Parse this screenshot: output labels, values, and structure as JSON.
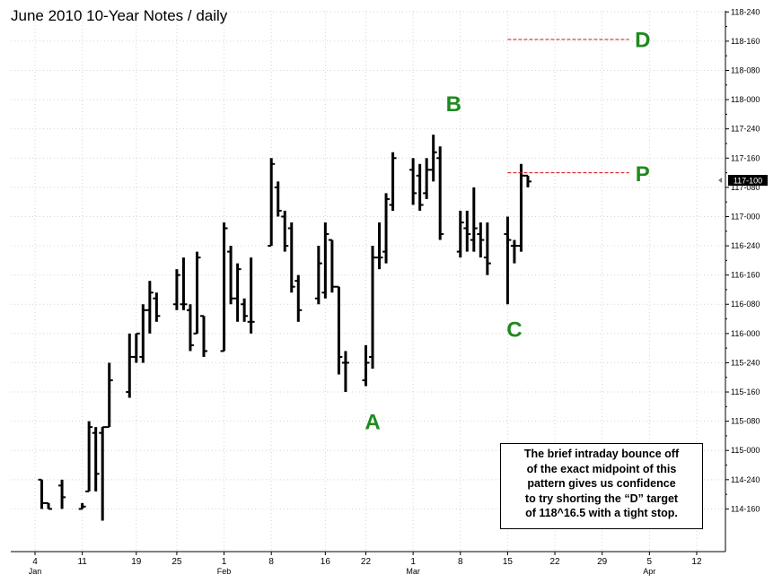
{
  "title": "June 2010 10-Year Notes  /  daily",
  "note": {
    "lines": [
      "The brief intraday bounce off",
      "of the exact midpoint of this",
      "pattern gives us confidence",
      "to try shorting the “D” target",
      "of 118^16.5 with a tight stop."
    ]
  },
  "colors": {
    "bars": "#000000",
    "grid": "#d4d4d4",
    "levels": "#d01010",
    "point_labels": "#1f8a1f",
    "last_price_bg": "#000000"
  },
  "chart_data": {
    "type": "ohlc",
    "title": "June 2010 10-Year Notes  /  daily",
    "price_unit": "32nds (116-240 = 116 + 24/32)",
    "ylim": [
      14.135,
      18.76
    ],
    "yticks": [
      {
        "label": "114-160",
        "v": 14.5
      },
      {
        "label": "114-240",
        "v": 14.75
      },
      {
        "label": "115-000",
        "v": 15.0
      },
      {
        "label": "115-080",
        "v": 15.25
      },
      {
        "label": "115-160",
        "v": 15.5
      },
      {
        "label": "115-240",
        "v": 15.75
      },
      {
        "label": "116-000",
        "v": 16.0
      },
      {
        "label": "116-080",
        "v": 16.25
      },
      {
        "label": "116-160",
        "v": 16.5
      },
      {
        "label": "116-240",
        "v": 16.75
      },
      {
        "label": "117-000",
        "v": 17.0
      },
      {
        "label": "117-080",
        "v": 17.25
      },
      {
        "label": "117-160",
        "v": 17.5
      },
      {
        "label": "117-240",
        "v": 17.75
      },
      {
        "label": "118-000",
        "v": 18.0
      },
      {
        "label": "118-080",
        "v": 18.25
      },
      {
        "label": "118-160",
        "v": 18.5
      },
      {
        "label": "118-240",
        "v": 18.75
      }
    ],
    "xticks": [
      {
        "label": "4",
        "month": "Jan",
        "d": 4
      },
      {
        "label": "11",
        "month": "",
        "d": 11
      },
      {
        "label": "19",
        "month": "",
        "d": 19
      },
      {
        "label": "25",
        "month": "",
        "d": 25
      },
      {
        "label": "1",
        "month": "Feb",
        "d": 32
      },
      {
        "label": "8",
        "month": "",
        "d": 39
      },
      {
        "label": "16",
        "month": "",
        "d": 47
      },
      {
        "label": "22",
        "month": "",
        "d": 53
      },
      {
        "label": "1",
        "month": "Mar",
        "d": 60
      },
      {
        "label": "8",
        "month": "",
        "d": 67
      },
      {
        "label": "15",
        "month": "",
        "d": 74
      },
      {
        "label": "22",
        "month": "",
        "d": 81
      },
      {
        "label": "29",
        "month": "",
        "d": 88
      },
      {
        "label": "5",
        "month": "Apr",
        "d": 95
      },
      {
        "label": "12",
        "month": "",
        "d": 102
      }
    ],
    "bars": [
      {
        "d": 5,
        "h": 14.75,
        "l": 14.5,
        "o": 14.75,
        "c": 14.55
      },
      {
        "d": 6,
        "h": 14.55,
        "l": 14.5,
        "o": 14.55,
        "c": 14.5
      },
      {
        "d": 8,
        "h": 14.75,
        "l": 14.5,
        "o": 14.7,
        "c": 14.6
      },
      {
        "d": 11,
        "h": 14.55,
        "l": 14.5,
        "o": 14.5,
        "c": 14.52
      },
      {
        "d": 12,
        "h": 15.25,
        "l": 14.65,
        "o": 14.65,
        "c": 15.2
      },
      {
        "d": 13,
        "h": 15.2,
        "l": 14.65,
        "o": 15.15,
        "c": 14.8
      },
      {
        "d": 14,
        "h": 15.2,
        "l": 14.4,
        "o": 15.15,
        "c": 15.2
      },
      {
        "d": 15,
        "h": 15.75,
        "l": 15.2,
        "o": 15.2,
        "c": 15.6
      },
      {
        "d": 18,
        "h": 16.0,
        "l": 15.45,
        "o": 15.5,
        "c": 15.8
      },
      {
        "d": 19,
        "h": 16.0,
        "l": 15.75,
        "o": 15.8,
        "c": 16.0
      },
      {
        "d": 20,
        "h": 16.25,
        "l": 15.75,
        "o": 15.8,
        "c": 16.2
      },
      {
        "d": 21,
        "h": 16.45,
        "l": 16.0,
        "o": 16.2,
        "c": 16.35
      },
      {
        "d": 22,
        "h": 16.35,
        "l": 16.1,
        "o": 16.3,
        "c": 16.15
      },
      {
        "d": 25,
        "h": 16.55,
        "l": 16.2,
        "o": 16.25,
        "c": 16.5
      },
      {
        "d": 26,
        "h": 16.65,
        "l": 16.2,
        "o": 16.25,
        "c": 16.25
      },
      {
        "d": 27,
        "h": 16.25,
        "l": 15.85,
        "o": 16.2,
        "c": 15.9
      },
      {
        "d": 28,
        "h": 16.7,
        "l": 16.0,
        "o": 16.0,
        "c": 16.65
      },
      {
        "d": 29,
        "h": 16.15,
        "l": 15.8,
        "o": 16.15,
        "c": 15.85
      },
      {
        "d": 32,
        "h": 16.95,
        "l": 15.85,
        "o": 15.85,
        "c": 16.9
      },
      {
        "d": 33,
        "h": 16.75,
        "l": 16.25,
        "o": 16.7,
        "c": 16.3
      },
      {
        "d": 34,
        "h": 16.6,
        "l": 16.1,
        "o": 16.3,
        "c": 16.55
      },
      {
        "d": 35,
        "h": 16.3,
        "l": 16.1,
        "o": 16.25,
        "c": 16.15
      },
      {
        "d": 36,
        "h": 16.65,
        "l": 16.0,
        "o": 16.1,
        "c": 16.1
      },
      {
        "d": 39,
        "h": 17.5,
        "l": 16.75,
        "o": 16.75,
        "c": 17.45
      },
      {
        "d": 40,
        "h": 17.3,
        "l": 17.0,
        "o": 17.25,
        "c": 17.05
      },
      {
        "d": 41,
        "h": 17.05,
        "l": 16.7,
        "o": 17.0,
        "c": 16.75
      },
      {
        "d": 42,
        "h": 16.95,
        "l": 16.35,
        "o": 16.9,
        "c": 16.4
      },
      {
        "d": 43,
        "h": 16.5,
        "l": 16.1,
        "o": 16.45,
        "c": 16.2
      },
      {
        "d": 46,
        "h": 16.75,
        "l": 16.25,
        "o": 16.3,
        "c": 16.6
      },
      {
        "d": 47,
        "h": 16.95,
        "l": 16.3,
        "o": 16.35,
        "c": 16.85
      },
      {
        "d": 48,
        "h": 16.8,
        "l": 16.35,
        "o": 16.8,
        "c": 16.4
      },
      {
        "d": 49,
        "h": 16.4,
        "l": 15.65,
        "o": 16.4,
        "c": 15.8
      },
      {
        "d": 50,
        "h": 15.85,
        "l": 15.5,
        "o": 15.75,
        "c": 15.75
      },
      {
        "d": 53,
        "h": 15.9,
        "l": 15.55,
        "o": 15.6,
        "c": 15.75
      },
      {
        "d": 54,
        "h": 16.75,
        "l": 15.7,
        "o": 15.8,
        "c": 16.65
      },
      {
        "d": 55,
        "h": 16.95,
        "l": 16.55,
        "o": 16.65,
        "c": 16.65
      },
      {
        "d": 56,
        "h": 17.2,
        "l": 16.6,
        "o": 16.7,
        "c": 17.15
      },
      {
        "d": 57,
        "h": 17.55,
        "l": 17.05,
        "o": 17.1,
        "c": 17.5
      },
      {
        "d": 60,
        "h": 17.5,
        "l": 17.1,
        "o": 17.4,
        "c": 17.2
      },
      {
        "d": 61,
        "h": 17.45,
        "l": 17.05,
        "o": 17.35,
        "c": 17.1
      },
      {
        "d": 62,
        "h": 17.5,
        "l": 17.15,
        "o": 17.2,
        "c": 17.4
      },
      {
        "d": 63,
        "h": 17.7,
        "l": 17.3,
        "o": 17.4,
        "c": 17.55
      },
      {
        "d": 64,
        "h": 17.6,
        "l": 16.8,
        "o": 17.5,
        "c": 16.85
      },
      {
        "d": 67,
        "h": 17.05,
        "l": 16.65,
        "o": 16.7,
        "c": 16.95
      },
      {
        "d": 68,
        "h": 17.05,
        "l": 16.7,
        "o": 16.9,
        "c": 16.85
      },
      {
        "d": 69,
        "h": 17.25,
        "l": 16.7,
        "o": 16.8,
        "c": 16.9
      },
      {
        "d": 70,
        "h": 16.95,
        "l": 16.65,
        "o": 16.85,
        "c": 16.8
      },
      {
        "d": 71,
        "h": 16.95,
        "l": 16.5,
        "o": 16.65,
        "c": 16.6
      },
      {
        "d": 74,
        "h": 17.0,
        "l": 16.25,
        "o": 16.85,
        "c": 16.8
      },
      {
        "d": 75,
        "h": 16.8,
        "l": 16.6,
        "o": 16.75,
        "c": 16.75
      },
      {
        "d": 76,
        "h": 17.45,
        "l": 16.7,
        "o": 16.75,
        "c": 17.35
      },
      {
        "d": 77,
        "h": 17.35,
        "l": 17.25,
        "o": 17.35,
        "c": 17.3
      }
    ],
    "levels": [
      {
        "name": "D",
        "v": 18.515,
        "d_start": 74,
        "d_end": 92
      },
      {
        "name": "P",
        "v": 17.375,
        "d_start": 74,
        "d_end": 92
      }
    ],
    "points": [
      {
        "label": "A",
        "d": 54,
        "v": 15.25
      },
      {
        "label": "B",
        "d": 66,
        "v": 17.97
      },
      {
        "label": "C",
        "d": 75,
        "v": 16.04
      },
      {
        "label": "D",
        "d": 94,
        "v": 18.52
      },
      {
        "label": "P",
        "d": 94,
        "v": 17.37
      }
    ],
    "last_price": {
      "label": "117-100",
      "v": 17.31
    }
  }
}
